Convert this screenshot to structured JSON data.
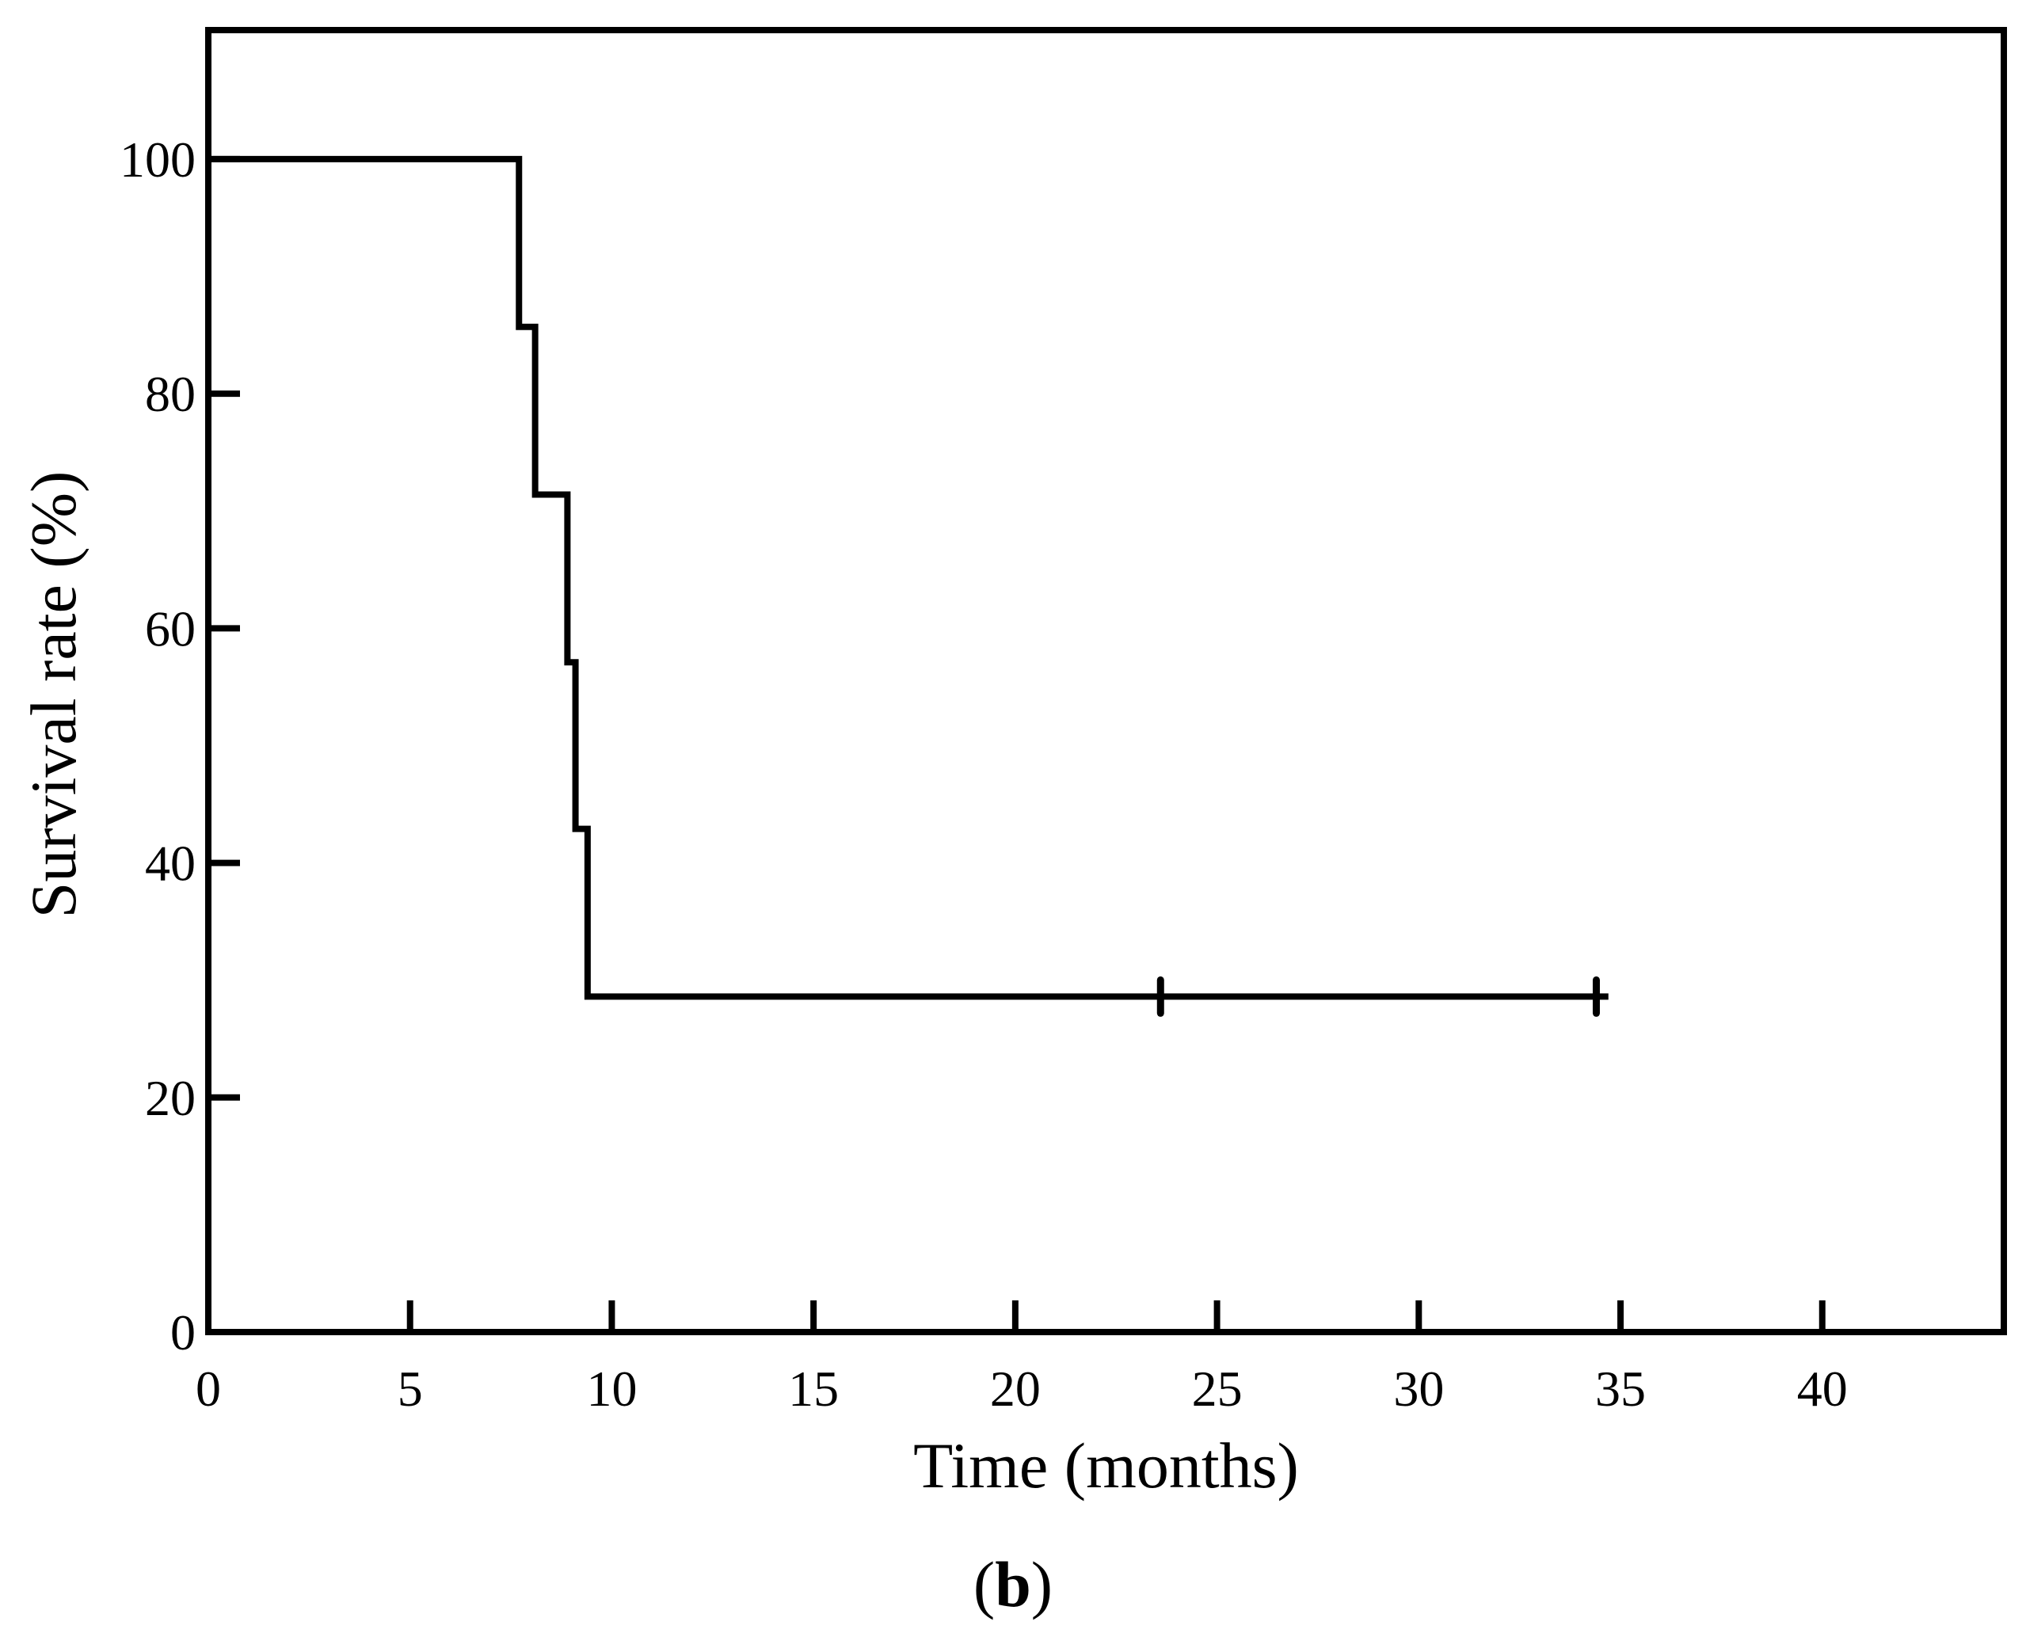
{
  "figure": {
    "background_color": "#ffffff",
    "line_color": "#000000",
    "caption_prefix": "(",
    "caption_letter": "b",
    "caption_suffix": ")"
  },
  "axes": {
    "x": {
      "label": "Time (months)",
      "tick_labels": [
        "0",
        "5",
        "10",
        "15",
        "20",
        "25",
        "30",
        "35",
        "40"
      ]
    },
    "y": {
      "label": "Survival rate (%)",
      "tick_labels": [
        "0",
        "20",
        "40",
        "60",
        "80",
        "100"
      ]
    }
  },
  "chart_data": {
    "type": "line",
    "subtype": "kaplan_meier_step_curve",
    "title": "",
    "xlabel": "Time (months)",
    "ylabel": "Survival rate (%)",
    "xlim": [
      0,
      44.5
    ],
    "ylim": [
      0,
      111
    ],
    "x_ticks": [
      0,
      5,
      10,
      15,
      20,
      25,
      30,
      35,
      40
    ],
    "y_ticks": [
      0,
      20,
      40,
      60,
      80,
      100
    ],
    "grid": false,
    "legend": null,
    "series": [
      {
        "name": "survival-curve",
        "step_points": [
          {
            "time_months": 0,
            "survival_pct": 100
          },
          {
            "time_months": 7.7,
            "survival_pct": 85.7
          },
          {
            "time_months": 8.1,
            "survival_pct": 71.4
          },
          {
            "time_months": 8.9,
            "survival_pct": 57.1
          },
          {
            "time_months": 9.1,
            "survival_pct": 42.9
          },
          {
            "time_months": 9.4,
            "survival_pct": 28.6
          }
        ],
        "final_survival_pct": 28.6,
        "curve_end_month": 34.7,
        "censor_marks_months": [
          23.6,
          34.4
        ]
      }
    ]
  }
}
